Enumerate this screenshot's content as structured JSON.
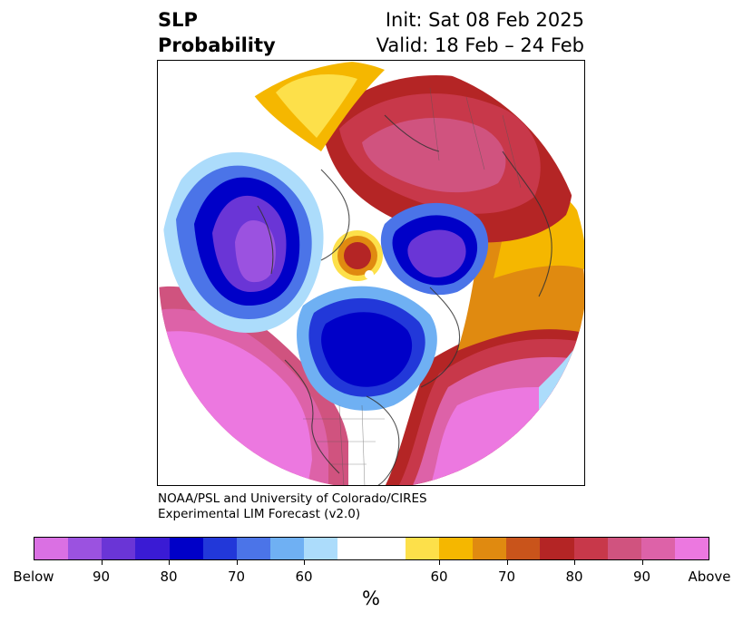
{
  "header": {
    "title_line1": "SLP",
    "title_line2": "Probability",
    "init_label": "Init: Sat 08 Feb 2025",
    "valid_label": "Valid: 18 Feb – 24 Feb"
  },
  "credit": {
    "line1": "NOAA/PSL and University of Colorado/CIRES",
    "line2": "Experimental LIM Forecast (v2.0)"
  },
  "colorbar": {
    "unit": "%",
    "colors": [
      "#da70e3",
      "#9b52e0",
      "#6a35d6",
      "#3a1bd4",
      "#0000c8",
      "#2238d9",
      "#4b74e8",
      "#6fb0f3",
      "#acdcfb",
      "#ffffff",
      "#ffffff",
      "#fde04a",
      "#f5b700",
      "#e08a10",
      "#c9541b",
      "#b42525",
      "#c8384a",
      "#d0537f",
      "#dd62a8",
      "#ec78e0"
    ],
    "tick_labels": [
      "Below",
      "90",
      "80",
      "70",
      "60",
      "60",
      "70",
      "80",
      "90",
      "Above"
    ]
  },
  "map": {
    "region": "Northern Hemisphere polar stereographic",
    "colors": {
      "deep_blue": "#0000c8",
      "purple": "#6a35d6",
      "violet": "#9b52e0",
      "light_blue": "#6fb0f3",
      "pale_blue": "#acdcfb",
      "yellow": "#fde04a",
      "gold": "#f5b700",
      "orange": "#e08a10",
      "red": "#b42525",
      "rose": "#c8384a",
      "pink": "#dd62a8",
      "magenta": "#ec78e0"
    }
  }
}
